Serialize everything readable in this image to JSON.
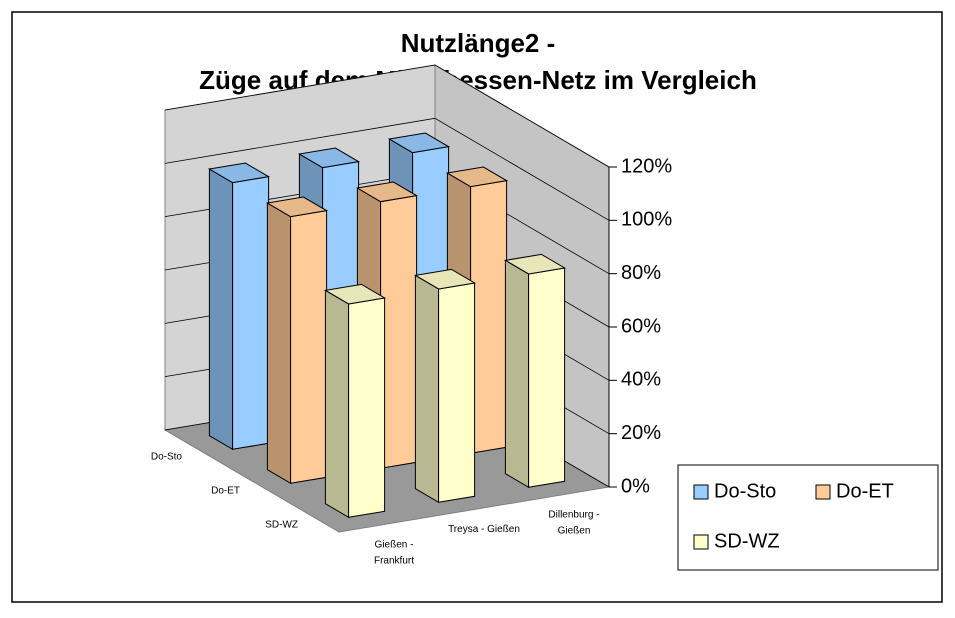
{
  "chart_data": {
    "type": "bar3d",
    "title": [
      "Nutzlänge2 -",
      "Züge auf dem Mittelhessen-Netz im Vergleich"
    ],
    "categories": [
      "Gießen - Frankfurt",
      "Treysa - Gießen",
      "Dillenburg - Gießen"
    ],
    "series": [
      {
        "name": "Do-Sto",
        "color": "#99ccff",
        "values": [
          100,
          100,
          100
        ]
      },
      {
        "name": "Do-ET",
        "color": "#ffcc99",
        "values": [
          100,
          100,
          100
        ]
      },
      {
        "name": "SD-WZ",
        "color": "#ffffcc",
        "values": [
          80,
          80,
          80
        ]
      }
    ],
    "ylim": [
      0,
      120
    ],
    "yticks": [
      {
        "value": 0,
        "label": "0%"
      },
      {
        "value": 20,
        "label": "20%"
      },
      {
        "value": 40,
        "label": "40%"
      },
      {
        "value": 60,
        "label": "60%"
      },
      {
        "value": 80,
        "label": "80%"
      },
      {
        "value": 100,
        "label": "100%"
      },
      {
        "value": 120,
        "label": "120%"
      }
    ],
    "grid": true,
    "legend": "bottom-right"
  }
}
